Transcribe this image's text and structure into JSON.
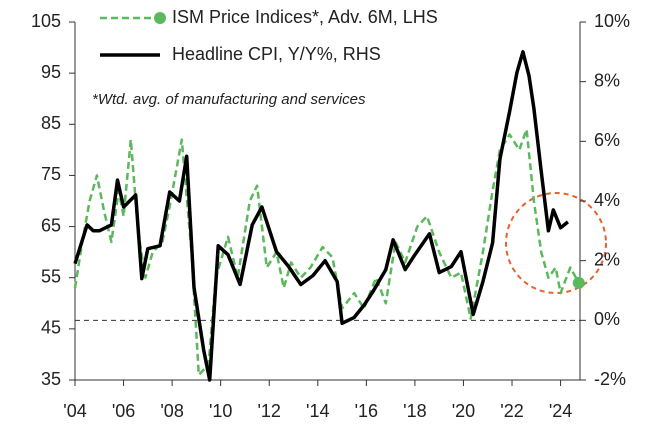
{
  "chart_data": {
    "type": "line",
    "annotation": "*Wtd. avg. of manufacturing and services",
    "xlim": [
      2004,
      2024.8
    ],
    "xticks": [
      {
        "value": 2004,
        "label": "'04"
      },
      {
        "value": 2006,
        "label": "'06"
      },
      {
        "value": 2008,
        "label": "'08"
      },
      {
        "value": 2010,
        "label": "'10"
      },
      {
        "value": 2012,
        "label": "'12"
      },
      {
        "value": 2014,
        "label": "'14"
      },
      {
        "value": 2016,
        "label": "'16"
      },
      {
        "value": 2018,
        "label": "'18"
      },
      {
        "value": 2020,
        "label": "'20"
      },
      {
        "value": 2022,
        "label": "'22"
      },
      {
        "value": 2024,
        "label": "'24"
      }
    ],
    "ylim": [
      35,
      105
    ],
    "yticks": [
      35,
      45,
      55,
      65,
      75,
      85,
      95,
      105
    ],
    "y2lim": [
      -2,
      10
    ],
    "y2ticks": [
      {
        "value": -2,
        "label": "-2%"
      },
      {
        "value": 0,
        "label": "0%"
      },
      {
        "value": 2,
        "label": "2%"
      },
      {
        "value": 4,
        "label": "4%"
      },
      {
        "value": 6,
        "label": "6%"
      },
      {
        "value": 8,
        "label": "8%"
      },
      {
        "value": 10,
        "label": "10%"
      }
    ],
    "y2_reference": 0,
    "series": [
      {
        "name": "ISM Price Indices*, Adv. 6M, LHS",
        "color": "#5cb85c",
        "dashed": true,
        "end_marker": true,
        "axis": "y",
        "x": [
          2004.0,
          2004.3,
          2004.6,
          2004.9,
          2005.2,
          2005.5,
          2005.8,
          2006.0,
          2006.3,
          2006.6,
          2006.9,
          2007.2,
          2007.6,
          2007.9,
          2008.4,
          2008.8,
          2009.1,
          2009.5,
          2009.8,
          2010.3,
          2010.7,
          2011.2,
          2011.5,
          2011.9,
          2012.3,
          2012.6,
          2012.9,
          2013.3,
          2013.7,
          2014.2,
          2014.6,
          2015.0,
          2015.5,
          2015.9,
          2016.4,
          2016.8,
          2017.2,
          2017.6,
          2018.1,
          2018.5,
          2019.0,
          2019.5,
          2019.9,
          2020.3,
          2020.8,
          2021.2,
          2021.5,
          2021.9,
          2022.3,
          2022.6,
          2022.9,
          2023.2,
          2023.5,
          2023.8,
          2024.0,
          2024.4,
          2024.75
        ],
        "values": [
          53,
          62,
          70,
          75,
          68,
          62,
          72,
          67,
          82,
          64,
          55,
          60,
          62,
          69,
          82,
          60,
          36,
          38,
          55,
          63,
          55,
          70,
          73,
          57,
          60,
          53,
          58,
          55,
          57,
          61,
          59,
          49,
          52,
          49,
          55,
          50,
          62,
          58,
          65,
          67,
          60,
          55,
          56,
          47,
          60,
          72,
          80,
          83,
          80,
          84,
          70,
          60,
          55,
          57,
          52,
          57,
          54
        ]
      },
      {
        "name": "Headline CPI, Y/Y%, RHS",
        "color": "#000000",
        "dashed": false,
        "end_marker": false,
        "axis": "y2",
        "x": [
          2004.0,
          2004.5,
          2004.75,
          2005.0,
          2005.5,
          2005.75,
          2006.0,
          2006.5,
          2006.75,
          2007.0,
          2007.5,
          2007.9,
          2008.3,
          2008.6,
          2008.9,
          2009.3,
          2009.55,
          2009.9,
          2010.3,
          2010.8,
          2011.3,
          2011.7,
          2012.3,
          2012.8,
          2013.3,
          2013.8,
          2014.3,
          2014.8,
          2015.0,
          2015.5,
          2015.9,
          2016.3,
          2016.8,
          2017.1,
          2017.6,
          2018.0,
          2018.6,
          2019.0,
          2019.5,
          2019.9,
          2020.4,
          2020.8,
          2021.2,
          2021.5,
          2021.9,
          2022.2,
          2022.45,
          2022.7,
          2022.9,
          2023.2,
          2023.5,
          2023.7,
          2024.0,
          2024.3
        ],
        "values": [
          1.9,
          3.2,
          3.0,
          3.0,
          3.2,
          4.7,
          3.8,
          4.2,
          1.4,
          2.4,
          2.5,
          4.3,
          4.0,
          5.5,
          1.1,
          -1.0,
          -2.0,
          2.5,
          2.2,
          1.2,
          3.2,
          3.8,
          2.3,
          1.8,
          1.2,
          1.5,
          2.0,
          1.3,
          -0.1,
          0.1,
          0.5,
          1.0,
          1.7,
          2.7,
          1.7,
          2.2,
          2.9,
          1.6,
          1.8,
          2.3,
          0.2,
          1.3,
          2.6,
          5.4,
          7.0,
          8.3,
          9.0,
          8.2,
          7.1,
          5.0,
          3.0,
          3.7,
          3.1,
          3.3
        ]
      }
    ]
  }
}
